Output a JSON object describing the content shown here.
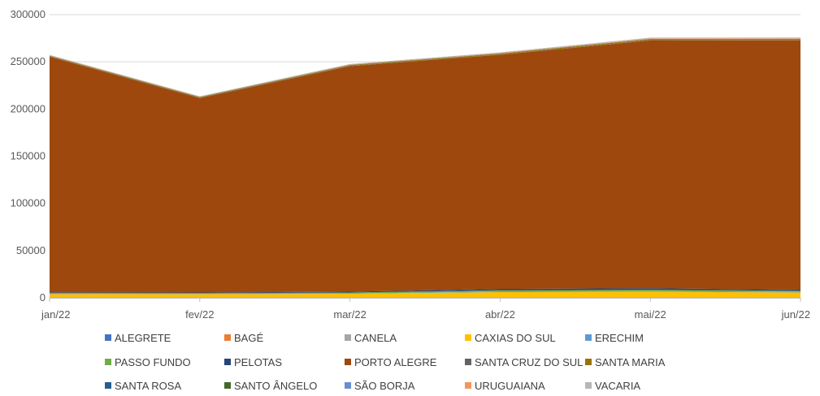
{
  "chart_data": {
    "type": "area",
    "stacked": true,
    "categories": [
      "jan/22",
      "fev/22",
      "mar/22",
      "abr/22",
      "mai/22",
      "jun/22"
    ],
    "ylim": [
      0,
      300000
    ],
    "yticks": [
      "0",
      "50000",
      "100000",
      "150000",
      "200000",
      "250000",
      "300000"
    ],
    "grid": true,
    "legend_position": "bottom",
    "series": [
      {
        "name": "ALEGRETE",
        "color": "#4472C4",
        "values": [
          200,
          200,
          200,
          200,
          200,
          200
        ]
      },
      {
        "name": "BAGÉ",
        "color": "#ED7D31",
        "values": [
          200,
          200,
          200,
          200,
          200,
          200
        ]
      },
      {
        "name": "CANELA",
        "color": "#A5A5A5",
        "values": [
          100,
          100,
          100,
          100,
          100,
          100
        ]
      },
      {
        "name": "CAXIAS DO SUL",
        "color": "#FFC000",
        "values": [
          3500,
          3300,
          3800,
          5500,
          5800,
          5200
        ]
      },
      {
        "name": "ERECHIM",
        "color": "#5B9BD5",
        "values": [
          300,
          300,
          300,
          400,
          400,
          400
        ]
      },
      {
        "name": "PASSO FUNDO",
        "color": "#70AD47",
        "values": [
          800,
          800,
          1000,
          1500,
          1800,
          1300
        ]
      },
      {
        "name": "PELOTAS",
        "color": "#264478",
        "values": [
          700,
          700,
          800,
          1500,
          1600,
          1200
        ]
      },
      {
        "name": "PORTO ALEGRE",
        "color": "#9E480E",
        "values": [
          249500,
          206000,
          239000,
          248000,
          262500,
          264200
        ]
      },
      {
        "name": "SANTA CRUZ DO SUL",
        "color": "#636363",
        "values": [
          300,
          300,
          300,
          300,
          300,
          300
        ]
      },
      {
        "name": "SANTA MARIA",
        "color": "#997300",
        "values": [
          700,
          600,
          800,
          900,
          1100,
          1000
        ]
      },
      {
        "name": "SANTA ROSA",
        "color": "#255E91",
        "values": [
          100,
          100,
          100,
          100,
          100,
          100
        ]
      },
      {
        "name": "SANTO ÂNGELO",
        "color": "#43682B",
        "values": [
          100,
          100,
          100,
          100,
          100,
          100
        ]
      },
      {
        "name": "SÃO BORJA",
        "color": "#698ED0",
        "values": [
          100,
          100,
          100,
          100,
          100,
          100
        ]
      },
      {
        "name": "URUGUAIANA",
        "color": "#F1975A",
        "values": [
          300,
          300,
          400,
          500,
          600,
          600
        ]
      },
      {
        "name": "VACARIA",
        "color": "#B7B7B7",
        "values": [
          400,
          400,
          500,
          600,
          700,
          700
        ]
      }
    ]
  }
}
